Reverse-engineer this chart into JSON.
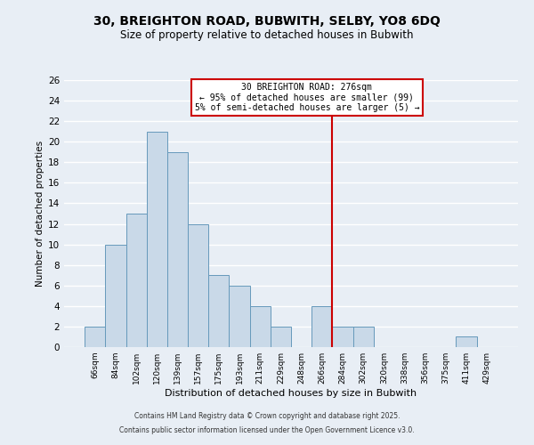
{
  "title": "30, BREIGHTON ROAD, BUBWITH, SELBY, YO8 6DQ",
  "subtitle": "Size of property relative to detached houses in Bubwith",
  "xlabel": "Distribution of detached houses by size in Bubwith",
  "ylabel": "Number of detached properties",
  "bar_color": "#c9d9e8",
  "bar_edge_color": "#6699bb",
  "bg_color": "#e8eef5",
  "grid_color": "#ffffff",
  "categories": [
    "66sqm",
    "84sqm",
    "102sqm",
    "120sqm",
    "139sqm",
    "157sqm",
    "175sqm",
    "193sqm",
    "211sqm",
    "229sqm",
    "248sqm",
    "266sqm",
    "284sqm",
    "302sqm",
    "320sqm",
    "338sqm",
    "356sqm",
    "375sqm",
    "411sqm",
    "429sqm"
  ],
  "values": [
    2,
    10,
    13,
    21,
    19,
    12,
    7,
    6,
    4,
    2,
    0,
    4,
    2,
    2,
    0,
    0,
    0,
    0,
    1,
    0
  ],
  "red_line_x": 11.5,
  "annotation_title": "30 BREIGHTON ROAD: 276sqm",
  "annotation_line1": "← 95% of detached houses are smaller (99)",
  "annotation_line2": "5% of semi-detached houses are larger (5) →",
  "ylim": [
    0,
    26
  ],
  "yticks": [
    0,
    2,
    4,
    6,
    8,
    10,
    12,
    14,
    16,
    18,
    20,
    22,
    24,
    26
  ],
  "footnote1": "Contains HM Land Registry data © Crown copyright and database right 2025.",
  "footnote2": "Contains public sector information licensed under the Open Government Licence v3.0.",
  "red_line_color": "#cc0000",
  "annotation_box_color": "#cc0000",
  "fig_width": 6.0,
  "fig_height": 5.0,
  "dpi": 100
}
